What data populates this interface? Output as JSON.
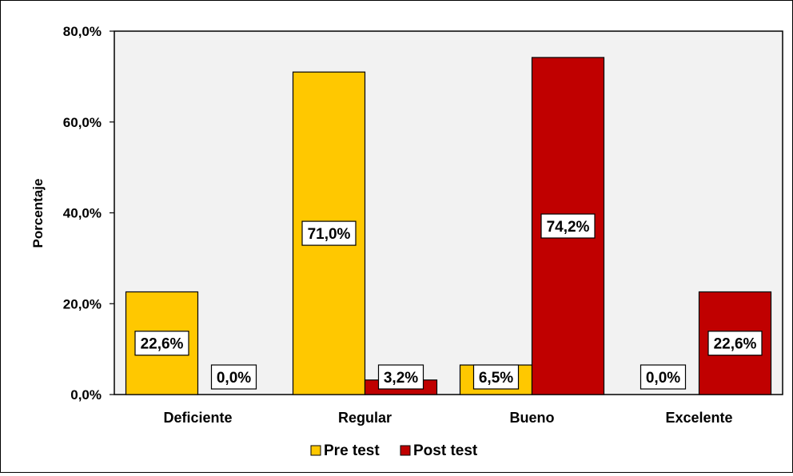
{
  "chart_data": {
    "type": "bar",
    "ylabel": "Porcentaje",
    "xlabel": "",
    "ylim": [
      0,
      80
    ],
    "yticks": [
      0,
      20,
      40,
      60,
      80
    ],
    "ytick_labels": [
      "0,0%",
      "20,0%",
      "40,0%",
      "60,0%",
      "80,0%"
    ],
    "categories": [
      "Deficiente",
      "Regular",
      "Bueno",
      "Excelente"
    ],
    "series": [
      {
        "name": "Pre test",
        "color": "#FFC800",
        "values": [
          22.6,
          71.0,
          6.5,
          0.0
        ],
        "labels": [
          "22,6%",
          "71,0%",
          "6,5%",
          "0,0%"
        ]
      },
      {
        "name": "Post test",
        "color": "#C00000",
        "values": [
          0.0,
          3.2,
          74.2,
          22.6
        ],
        "labels": [
          "0,0%",
          "3,2%",
          "74,2%",
          "22,6%"
        ]
      }
    ],
    "plot_background": "#F2F2F2",
    "legend_position": "bottom",
    "grid": false
  }
}
